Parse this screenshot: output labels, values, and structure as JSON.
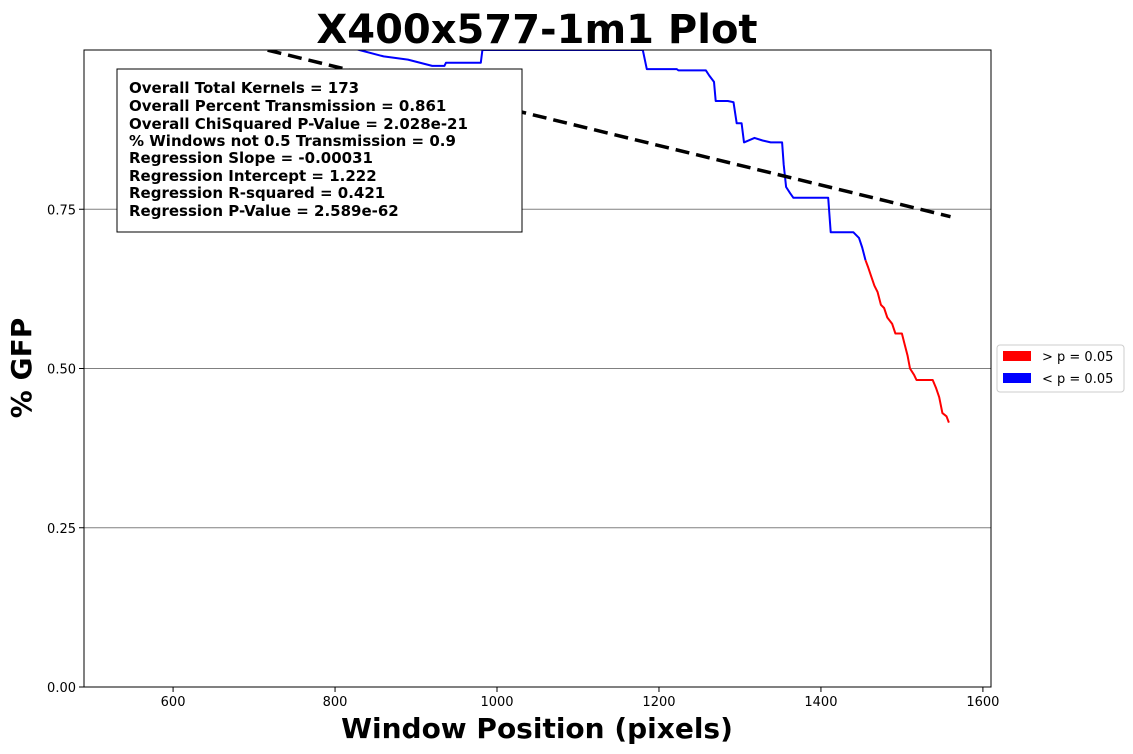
{
  "chart_data": {
    "type": "line",
    "title": "X400x577-1m1 Plot",
    "xlabel": "Window Position (pixels)",
    "ylabel": "% GFP",
    "xlim": [
      490,
      1610
    ],
    "ylim": [
      0.0,
      1.0
    ],
    "xticks": [
      600,
      800,
      1000,
      1200,
      1400,
      1600
    ],
    "yticks": [
      0.0,
      0.25,
      0.5,
      0.75
    ],
    "xtick_labels": [
      "600",
      "800",
      "1000",
      "1200",
      "1400",
      "1600"
    ],
    "ytick_labels": [
      "0.00",
      "0.25",
      "0.50",
      "0.75"
    ],
    "grid": "horizontal",
    "legend_position": "outside right",
    "legend": [
      {
        "label": "> p = 0.05",
        "color": "#ff0000"
      },
      {
        "label": "< p = 0.05",
        "color": "#0000ff"
      }
    ],
    "stats": [
      "Overall Total Kernels = 173",
      "Overall Percent Transmission = 0.861",
      "Overall ChiSquared P-Value = 2.028e-21",
      "% Windows not 0.5 Transmission = 0.9",
      "Regression Slope = -0.00031",
      "Regression Intercept = 1.222",
      "Regression R-squared = 0.421",
      "Regression P-Value = 2.589e-62"
    ],
    "regression": {
      "slope": -0.00031,
      "intercept": 1.222,
      "x_range": [
        490,
        1560
      ],
      "color": "#000000",
      "style": "dashed"
    },
    "series": [
      {
        "color": "#0000ff",
        "points": [
          [
            530,
            1.08
          ],
          [
            560,
            1.07
          ],
          [
            600,
            1.06
          ],
          [
            640,
            1.05
          ],
          [
            680,
            1.04
          ],
          [
            720,
            1.03
          ],
          [
            760,
            1.02
          ],
          [
            800,
            1.01
          ],
          [
            830,
            1.0
          ],
          [
            860,
            0.99
          ],
          [
            890,
            0.985
          ],
          [
            920,
            0.975
          ],
          [
            935,
            0.975
          ],
          [
            937,
            0.98
          ],
          [
            980,
            0.98
          ],
          [
            982,
            1.0
          ],
          [
            1180,
            1.0
          ],
          [
            1185,
            0.97
          ],
          [
            1222,
            0.97
          ],
          [
            1224,
            0.968
          ],
          [
            1258,
            0.968
          ],
          [
            1262,
            0.96
          ],
          [
            1268,
            0.95
          ],
          [
            1270,
            0.92
          ],
          [
            1285,
            0.92
          ],
          [
            1292,
            0.918
          ],
          [
            1296,
            0.885
          ],
          [
            1302,
            0.885
          ],
          [
            1305,
            0.855
          ],
          [
            1318,
            0.862
          ],
          [
            1328,
            0.858
          ],
          [
            1338,
            0.855
          ],
          [
            1352,
            0.855
          ],
          [
            1354,
            0.82
          ],
          [
            1357,
            0.785
          ],
          [
            1362,
            0.775
          ],
          [
            1366,
            0.768
          ],
          [
            1409,
            0.768
          ],
          [
            1412,
            0.714
          ],
          [
            1440,
            0.714
          ],
          [
            1447,
            0.705
          ],
          [
            1451,
            0.69
          ],
          [
            1455,
            0.67
          ]
        ]
      },
      {
        "color": "#ff0000",
        "points": [
          [
            1455,
            0.67
          ],
          [
            1458,
            0.66
          ],
          [
            1462,
            0.645
          ],
          [
            1466,
            0.63
          ],
          [
            1470,
            0.62
          ],
          [
            1474,
            0.6
          ],
          [
            1478,
            0.595
          ],
          [
            1482,
            0.58
          ],
          [
            1488,
            0.57
          ],
          [
            1492,
            0.555
          ],
          [
            1500,
            0.555
          ],
          [
            1503,
            0.54
          ],
          [
            1507,
            0.52
          ],
          [
            1510,
            0.5
          ],
          [
            1515,
            0.49
          ],
          [
            1518,
            0.482
          ],
          [
            1538,
            0.482
          ],
          [
            1542,
            0.47
          ],
          [
            1546,
            0.455
          ],
          [
            1550,
            0.43
          ],
          [
            1555,
            0.425
          ],
          [
            1558,
            0.415
          ]
        ]
      }
    ]
  }
}
